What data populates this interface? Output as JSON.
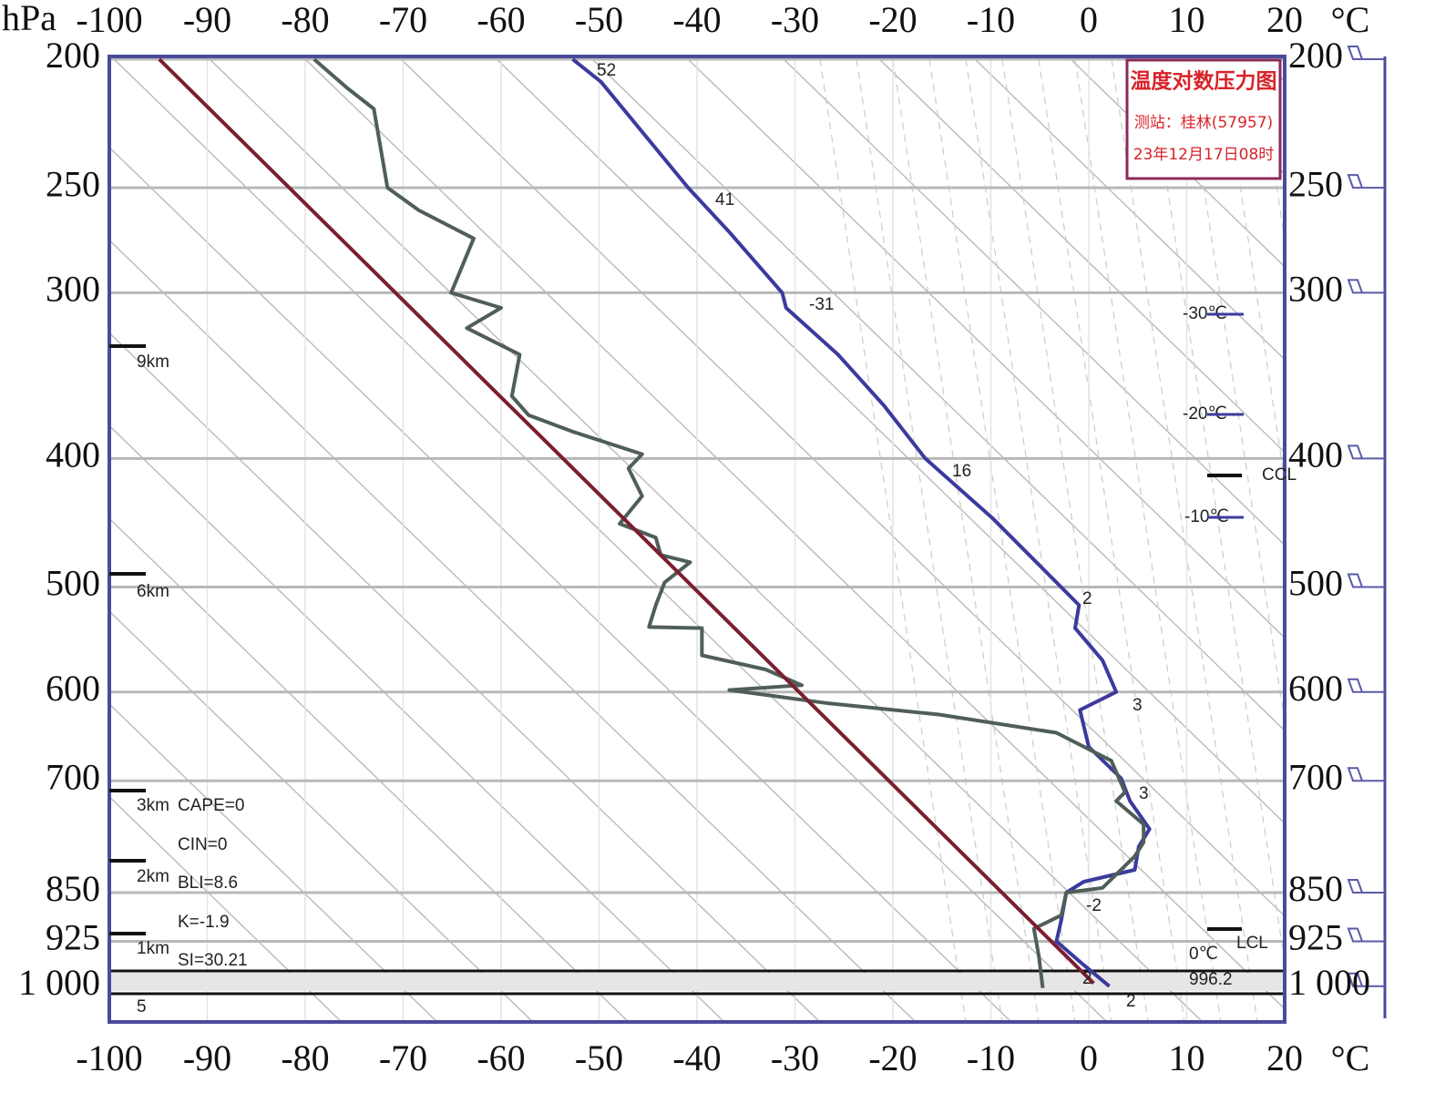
{
  "chart_data": {
    "type": "line",
    "title": "温度对数压力图",
    "subtitle": [
      "测站：桂林(57957)",
      "23年12月17日08时"
    ],
    "y_label": "hPa",
    "x_label": "°C",
    "log_y": true,
    "y_inverted": true,
    "grid": true,
    "xlim": [
      -100,
      20
    ],
    "xticks": [
      -100,
      -90,
      -80,
      -70,
      -60,
      -50,
      -40,
      -30,
      -20,
      -10,
      0,
      10,
      20
    ],
    "ylim": [
      200,
      1064
    ],
    "yticks": [
      200,
      250,
      300,
      400,
      500,
      600,
      700,
      850,
      925,
      {
        "value": 1000,
        "label": "1 000"
      }
    ],
    "series": [
      {
        "color": "#3b3a9e",
        "x": [
          -52.7,
          -49.8,
          -46.0,
          -40.9,
          -36.7,
          -31.3,
          -30.9,
          -25.6,
          -20.9,
          -16.7,
          -9.8,
          -3.3,
          -1.0,
          -1.4,
          1.4,
          2.8,
          -0.9,
          0.0,
          3.3,
          4.2,
          6.2,
          5.1,
          4.7,
          -0.5,
          -2.3,
          -2.8,
          -3.3,
          -0.5,
          2.1
        ],
        "values": [
          200,
          208,
          225,
          250,
          270,
          300,
          308,
          334,
          365,
          400,
          444,
          496,
          516,
          537,
          568,
          600,
          619,
          660,
          697,
          725,
          761,
          785,
          817,
          834,
          850,
          891,
          925,
          964,
          1000
        ]
      },
      {
        "color": "#4f5f58",
        "x": [
          -79.1,
          -75.8,
          -73.0,
          -71.6,
          -68.4,
          -62.8,
          -65.1,
          -60.0,
          -63.5,
          -58.1,
          -58.9,
          -57.2,
          -52.6,
          -45.6,
          -47.0,
          -45.6,
          -47.9,
          -44.2,
          -43.7,
          -40.7,
          -43.3,
          -44.2,
          -44.9,
          -39.5,
          -39.5,
          -33.0,
          -29.3,
          -36.7,
          -26.5,
          -15.3,
          -3.3,
          2.3,
          3.7,
          2.8,
          5.6,
          5.6,
          4.7,
          1.4,
          -2.3,
          -2.8,
          -5.6,
          -5.1,
          -4.7
        ],
        "values": [
          200,
          210,
          218,
          250,
          260,
          273,
          300,
          308,
          319,
          334,
          359,
          371,
          382,
          397,
          407,
          427,
          448,
          459,
          473,
          479,
          496,
          516,
          536,
          537,
          563,
          577,
          593,
          598,
          612,
          624,
          644,
          676,
          714,
          725,
          755,
          779,
          798,
          843,
          850,
          884,
          905,
          949,
          1003
        ]
      },
      {
        "color": "#7a1f2e",
        "x": [
          -94.9,
          0.5
        ],
        "values": [
          200,
          995
        ]
      }
    ],
    "annotations": {
      "curve_labels": [
        "52",
        "41",
        "-31",
        "16",
        "2",
        "3",
        "3",
        "-2",
        "2",
        "2"
      ],
      "isotherm_labels": [
        "-30℃",
        "-20℃",
        "-10℃",
        "0℃",
        "996.2"
      ],
      "levels": [
        "CCL",
        "LCL"
      ],
      "indices": [
        "CAPE=0",
        "CIN=0",
        "BLI=8.6",
        "K=-1.9",
        "SI=30.21"
      ],
      "heights": [
        "9km",
        "6km",
        "3km",
        "2km",
        "1km",
        "5"
      ]
    }
  }
}
